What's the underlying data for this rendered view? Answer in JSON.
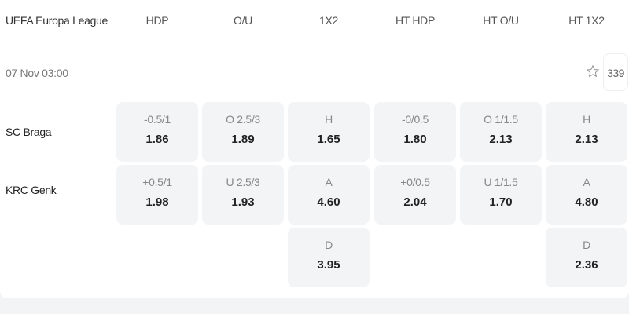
{
  "league": "UEFA Europa League",
  "headers": [
    "HDP",
    "O/U",
    "1X2",
    "HT HDP",
    "HT O/U",
    "HT 1X2"
  ],
  "match": {
    "time": "07 Nov  03:00",
    "count": "339",
    "favorite_icon": "star-outline-icon",
    "teams": [
      "SC Braga",
      "KRC Genk"
    ]
  },
  "rows": [
    [
      {
        "l": "-0.5/1",
        "v": "1.86"
      },
      {
        "l": "O 2.5/3",
        "v": "1.89"
      },
      {
        "l": "H",
        "v": "1.65"
      },
      {
        "l": "-0/0.5",
        "v": "1.80"
      },
      {
        "l": "O 1/1.5",
        "v": "2.13"
      },
      {
        "l": "H",
        "v": "2.13"
      }
    ],
    [
      {
        "l": "+0.5/1",
        "v": "1.98"
      },
      {
        "l": "U 2.5/3",
        "v": "1.93"
      },
      {
        "l": "A",
        "v": "4.60"
      },
      {
        "l": "+0/0.5",
        "v": "2.04"
      },
      {
        "l": "U 1/1.5",
        "v": "1.70"
      },
      {
        "l": "A",
        "v": "4.80"
      }
    ],
    [
      null,
      null,
      {
        "l": "D",
        "v": "3.95"
      },
      null,
      null,
      {
        "l": "D",
        "v": "2.36"
      }
    ]
  ]
}
